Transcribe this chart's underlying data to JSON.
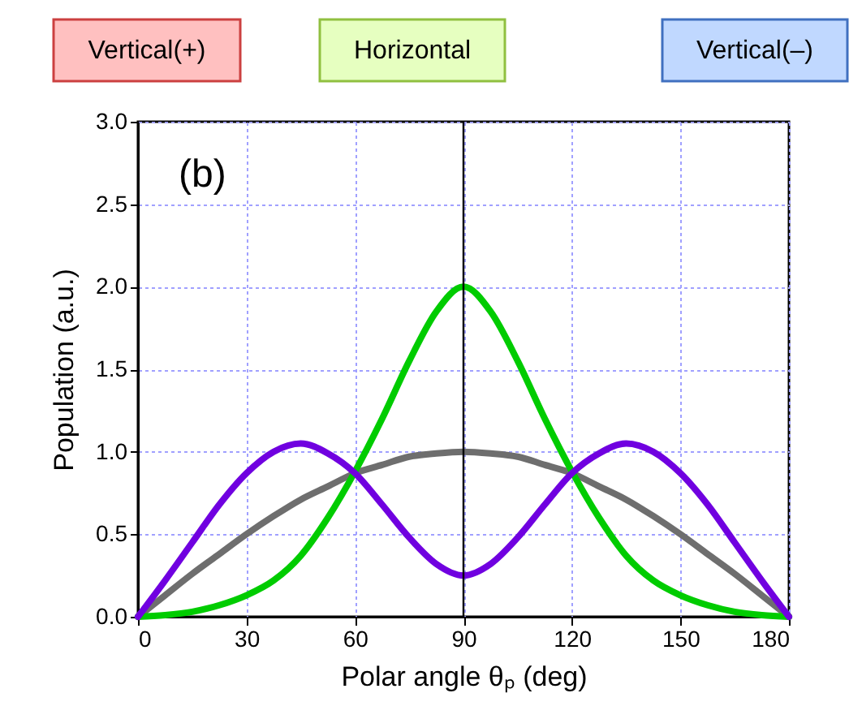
{
  "chart_data": {
    "type": "line",
    "xlabel": "Polar angle θₚ (deg)",
    "ylabel": "Population (a.u.)",
    "x": [
      0,
      7.5,
      15,
      22.5,
      30,
      37.5,
      45,
      52.5,
      60,
      67.5,
      75,
      82.5,
      90,
      97.5,
      105,
      112.5,
      120,
      127.5,
      135,
      142.5,
      150,
      157.5,
      165,
      172.5,
      180
    ],
    "series": [
      {
        "color": "#6e6e6e",
        "values": [
          0,
          0.13,
          0.26,
          0.38,
          0.5,
          0.61,
          0.71,
          0.79,
          0.87,
          0.92,
          0.97,
          0.99,
          1.0,
          0.99,
          0.97,
          0.92,
          0.87,
          0.79,
          0.71,
          0.61,
          0.5,
          0.38,
          0.26,
          0.13,
          0
        ]
      },
      {
        "color": "#00cc00",
        "values": [
          0,
          0.01,
          0.03,
          0.07,
          0.13,
          0.22,
          0.37,
          0.6,
          0.88,
          1.2,
          1.55,
          1.85,
          2.0,
          1.85,
          1.55,
          1.2,
          0.88,
          0.6,
          0.37,
          0.22,
          0.13,
          0.07,
          0.03,
          0.01,
          0
        ]
      },
      {
        "color": "#7000e0",
        "values": [
          0,
          0.22,
          0.45,
          0.68,
          0.87,
          1.0,
          1.05,
          0.99,
          0.87,
          0.68,
          0.48,
          0.32,
          0.25,
          0.32,
          0.48,
          0.68,
          0.87,
          0.99,
          1.05,
          1.0,
          0.87,
          0.68,
          0.45,
          0.22,
          0
        ]
      }
    ],
    "xlim": [
      0,
      180
    ],
    "xticks": [
      0,
      30,
      60,
      90,
      120,
      150,
      180
    ],
    "ylim": [
      0,
      3.0
    ],
    "yticks": [
      {
        "value": 0,
        "label": "0.0"
      },
      {
        "value": 0.5,
        "label": "0.5"
      },
      {
        "value": 1,
        "label": "1.0"
      },
      {
        "value": 1.5,
        "label": "1.5"
      },
      {
        "value": 2,
        "label": "2.0"
      },
      {
        "value": 2.5,
        "label": "2.5"
      },
      {
        "value": 3,
        "label": "3.0"
      }
    ],
    "ref_lines": [
      {
        "axis": "x",
        "value": 90,
        "color": "#000000"
      }
    ],
    "annotations": [
      "Vertical(+)",
      "Horizontal",
      "Vertical(–)",
      "(b)"
    ],
    "grid": true,
    "marker": "none",
    "line_style": "solid",
    "legend": false
  }
}
